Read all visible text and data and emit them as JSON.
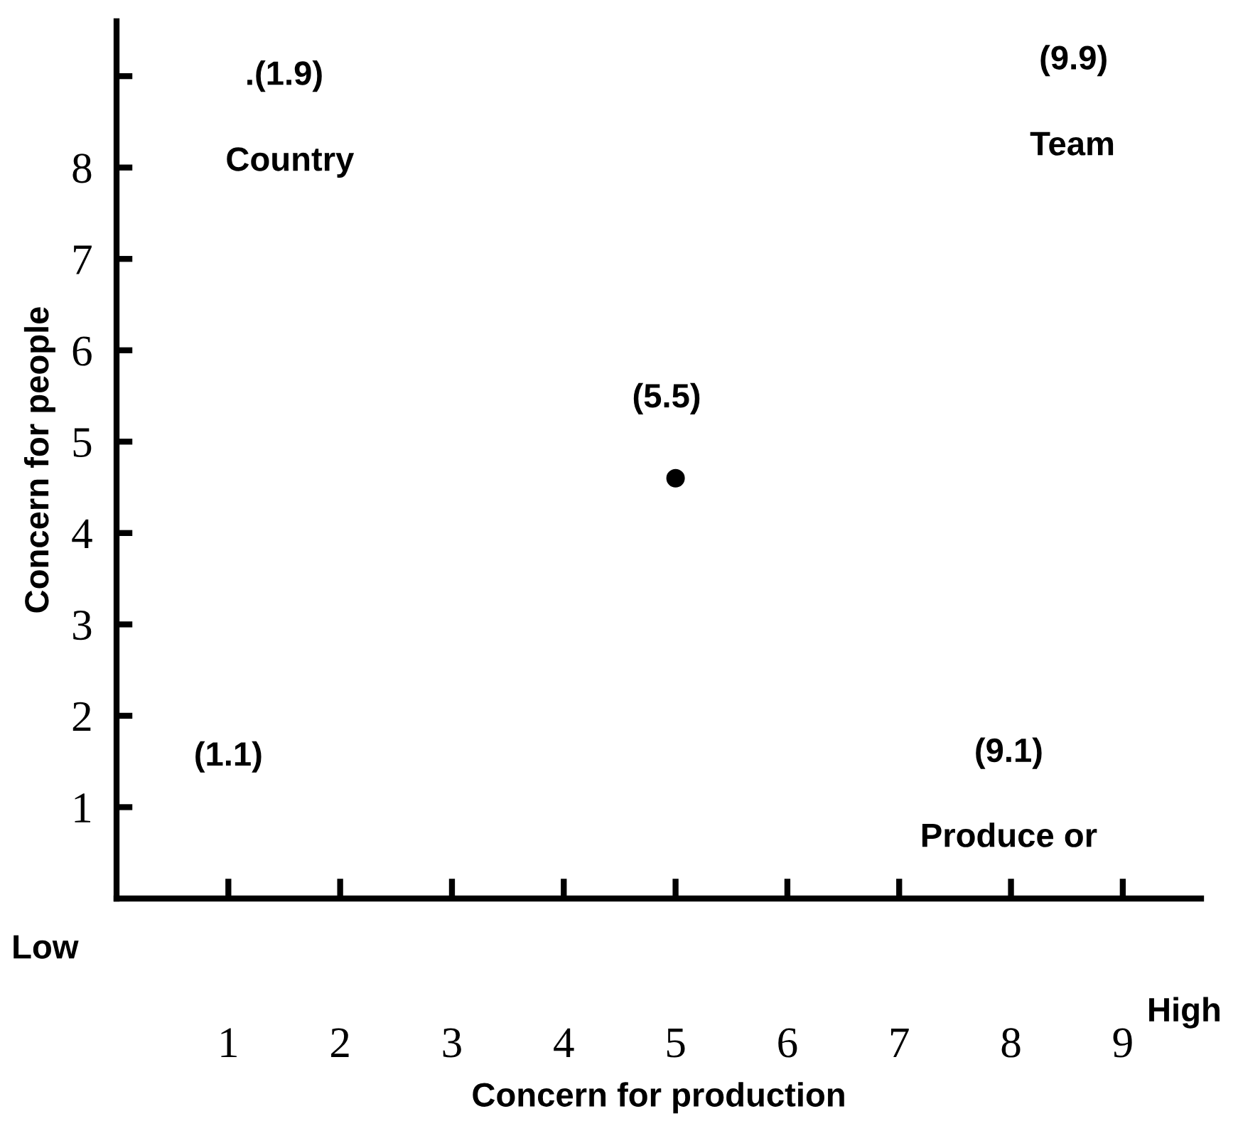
{
  "chart_data": {
    "type": "scatter",
    "xlabel": "Concern for production",
    "ylabel": "Concern for people",
    "x": [
      5
    ],
    "series": [
      {
        "color": "#000000",
        "values": [
          4.6
        ]
      }
    ],
    "xlim": [
      0,
      9.7
    ],
    "ylim": [
      0,
      9.6
    ],
    "xticks": [
      1,
      2,
      3,
      4,
      5,
      6,
      7,
      8,
      9
    ],
    "yticks": [
      1,
      2,
      3,
      4,
      5,
      6,
      7,
      8,
      {
        "value": 9,
        "label": null
      }
    ],
    "annotations": [
      ".(1.9)",
      "Country",
      "(9.9)",
      "Team",
      "(5.5)",
      "(1.1)",
      "(9.1)",
      "Produce or",
      "Low",
      "High"
    ],
    "grid": false,
    "legend": false,
    "marker": "circle"
  }
}
